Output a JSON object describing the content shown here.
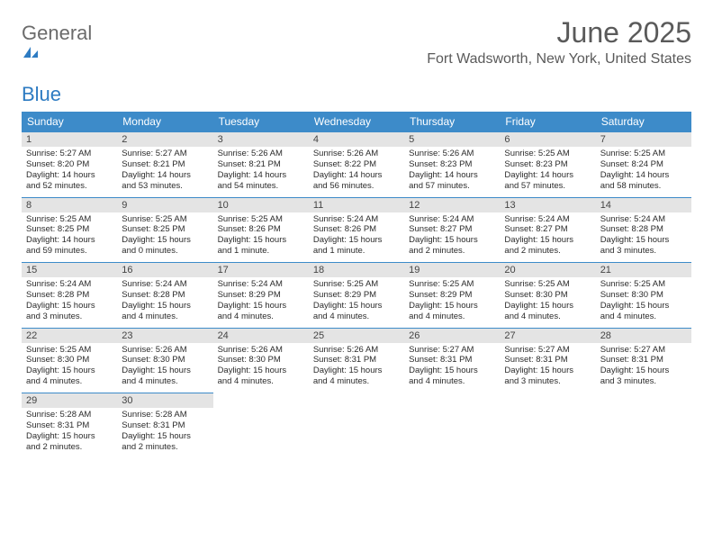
{
  "logo": {
    "text1": "General",
    "text2": "Blue"
  },
  "title": "June 2025",
  "location": "Fort Wadsworth, New York, United States",
  "header_color": "#3d8bc9",
  "daynum_bg": "#e4e4e4",
  "columns": [
    "Sunday",
    "Monday",
    "Tuesday",
    "Wednesday",
    "Thursday",
    "Friday",
    "Saturday"
  ],
  "weeks": [
    [
      {
        "n": "1",
        "sr": "Sunrise: 5:27 AM",
        "ss": "Sunset: 8:20 PM",
        "d1": "Daylight: 14 hours",
        "d2": "and 52 minutes."
      },
      {
        "n": "2",
        "sr": "Sunrise: 5:27 AM",
        "ss": "Sunset: 8:21 PM",
        "d1": "Daylight: 14 hours",
        "d2": "and 53 minutes."
      },
      {
        "n": "3",
        "sr": "Sunrise: 5:26 AM",
        "ss": "Sunset: 8:21 PM",
        "d1": "Daylight: 14 hours",
        "d2": "and 54 minutes."
      },
      {
        "n": "4",
        "sr": "Sunrise: 5:26 AM",
        "ss": "Sunset: 8:22 PM",
        "d1": "Daylight: 14 hours",
        "d2": "and 56 minutes."
      },
      {
        "n": "5",
        "sr": "Sunrise: 5:26 AM",
        "ss": "Sunset: 8:23 PM",
        "d1": "Daylight: 14 hours",
        "d2": "and 57 minutes."
      },
      {
        "n": "6",
        "sr": "Sunrise: 5:25 AM",
        "ss": "Sunset: 8:23 PM",
        "d1": "Daylight: 14 hours",
        "d2": "and 57 minutes."
      },
      {
        "n": "7",
        "sr": "Sunrise: 5:25 AM",
        "ss": "Sunset: 8:24 PM",
        "d1": "Daylight: 14 hours",
        "d2": "and 58 minutes."
      }
    ],
    [
      {
        "n": "8",
        "sr": "Sunrise: 5:25 AM",
        "ss": "Sunset: 8:25 PM",
        "d1": "Daylight: 14 hours",
        "d2": "and 59 minutes."
      },
      {
        "n": "9",
        "sr": "Sunrise: 5:25 AM",
        "ss": "Sunset: 8:25 PM",
        "d1": "Daylight: 15 hours",
        "d2": "and 0 minutes."
      },
      {
        "n": "10",
        "sr": "Sunrise: 5:25 AM",
        "ss": "Sunset: 8:26 PM",
        "d1": "Daylight: 15 hours",
        "d2": "and 1 minute."
      },
      {
        "n": "11",
        "sr": "Sunrise: 5:24 AM",
        "ss": "Sunset: 8:26 PM",
        "d1": "Daylight: 15 hours",
        "d2": "and 1 minute."
      },
      {
        "n": "12",
        "sr": "Sunrise: 5:24 AM",
        "ss": "Sunset: 8:27 PM",
        "d1": "Daylight: 15 hours",
        "d2": "and 2 minutes."
      },
      {
        "n": "13",
        "sr": "Sunrise: 5:24 AM",
        "ss": "Sunset: 8:27 PM",
        "d1": "Daylight: 15 hours",
        "d2": "and 2 minutes."
      },
      {
        "n": "14",
        "sr": "Sunrise: 5:24 AM",
        "ss": "Sunset: 8:28 PM",
        "d1": "Daylight: 15 hours",
        "d2": "and 3 minutes."
      }
    ],
    [
      {
        "n": "15",
        "sr": "Sunrise: 5:24 AM",
        "ss": "Sunset: 8:28 PM",
        "d1": "Daylight: 15 hours",
        "d2": "and 3 minutes."
      },
      {
        "n": "16",
        "sr": "Sunrise: 5:24 AM",
        "ss": "Sunset: 8:28 PM",
        "d1": "Daylight: 15 hours",
        "d2": "and 4 minutes."
      },
      {
        "n": "17",
        "sr": "Sunrise: 5:24 AM",
        "ss": "Sunset: 8:29 PM",
        "d1": "Daylight: 15 hours",
        "d2": "and 4 minutes."
      },
      {
        "n": "18",
        "sr": "Sunrise: 5:25 AM",
        "ss": "Sunset: 8:29 PM",
        "d1": "Daylight: 15 hours",
        "d2": "and 4 minutes."
      },
      {
        "n": "19",
        "sr": "Sunrise: 5:25 AM",
        "ss": "Sunset: 8:29 PM",
        "d1": "Daylight: 15 hours",
        "d2": "and 4 minutes."
      },
      {
        "n": "20",
        "sr": "Sunrise: 5:25 AM",
        "ss": "Sunset: 8:30 PM",
        "d1": "Daylight: 15 hours",
        "d2": "and 4 minutes."
      },
      {
        "n": "21",
        "sr": "Sunrise: 5:25 AM",
        "ss": "Sunset: 8:30 PM",
        "d1": "Daylight: 15 hours",
        "d2": "and 4 minutes."
      }
    ],
    [
      {
        "n": "22",
        "sr": "Sunrise: 5:25 AM",
        "ss": "Sunset: 8:30 PM",
        "d1": "Daylight: 15 hours",
        "d2": "and 4 minutes."
      },
      {
        "n": "23",
        "sr": "Sunrise: 5:26 AM",
        "ss": "Sunset: 8:30 PM",
        "d1": "Daylight: 15 hours",
        "d2": "and 4 minutes."
      },
      {
        "n": "24",
        "sr": "Sunrise: 5:26 AM",
        "ss": "Sunset: 8:30 PM",
        "d1": "Daylight: 15 hours",
        "d2": "and 4 minutes."
      },
      {
        "n": "25",
        "sr": "Sunrise: 5:26 AM",
        "ss": "Sunset: 8:31 PM",
        "d1": "Daylight: 15 hours",
        "d2": "and 4 minutes."
      },
      {
        "n": "26",
        "sr": "Sunrise: 5:27 AM",
        "ss": "Sunset: 8:31 PM",
        "d1": "Daylight: 15 hours",
        "d2": "and 4 minutes."
      },
      {
        "n": "27",
        "sr": "Sunrise: 5:27 AM",
        "ss": "Sunset: 8:31 PM",
        "d1": "Daylight: 15 hours",
        "d2": "and 3 minutes."
      },
      {
        "n": "28",
        "sr": "Sunrise: 5:27 AM",
        "ss": "Sunset: 8:31 PM",
        "d1": "Daylight: 15 hours",
        "d2": "and 3 minutes."
      }
    ],
    [
      {
        "n": "29",
        "sr": "Sunrise: 5:28 AM",
        "ss": "Sunset: 8:31 PM",
        "d1": "Daylight: 15 hours",
        "d2": "and 2 minutes."
      },
      {
        "n": "30",
        "sr": "Sunrise: 5:28 AM",
        "ss": "Sunset: 8:31 PM",
        "d1": "Daylight: 15 hours",
        "d2": "and 2 minutes."
      },
      null,
      null,
      null,
      null,
      null
    ]
  ]
}
